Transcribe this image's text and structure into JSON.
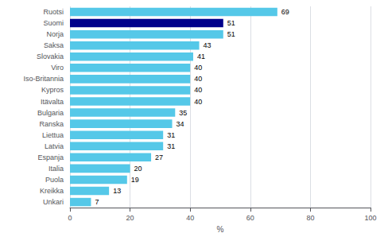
{
  "chart_data": {
    "type": "bar",
    "orientation": "horizontal",
    "categories": [
      "Ruotsi",
      "Suomi",
      "Norja",
      "Saksa",
      "Slovakia",
      "Viro",
      "Iso-Britannia",
      "Kypros",
      "Itävalta",
      "Bulgaria",
      "Ranska",
      "Liettua",
      "Latvia",
      "Espanja",
      "Italia",
      "Puola",
      "Kreikka",
      "Unkari"
    ],
    "values": [
      69,
      51,
      51,
      43,
      41,
      40,
      40,
      40,
      40,
      35,
      34,
      31,
      31,
      27,
      20,
      19,
      13,
      7
    ],
    "colors": [
      "#55C8E8",
      "#00008B",
      "#55C8E8",
      "#55C8E8",
      "#55C8E8",
      "#55C8E8",
      "#55C8E8",
      "#55C8E8",
      "#55C8E8",
      "#55C8E8",
      "#55C8E8",
      "#55C8E8",
      "#55C8E8",
      "#55C8E8",
      "#55C8E8",
      "#55C8E8",
      "#55C8E8",
      "#55C8E8"
    ],
    "xlabel": "%",
    "xlim": [
      0,
      100
    ],
    "xticks": [
      0,
      20,
      40,
      60,
      80,
      100
    ],
    "grid": true,
    "data_labels": true
  }
}
